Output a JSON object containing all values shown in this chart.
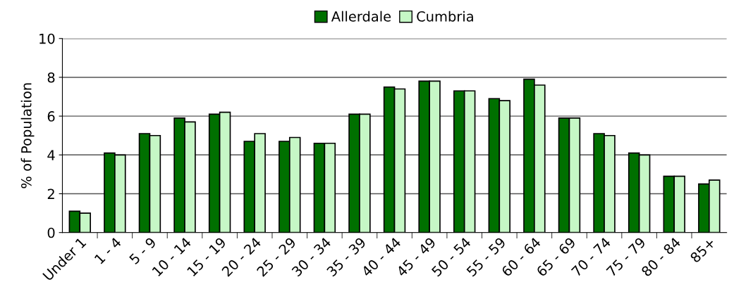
{
  "chart_data": {
    "type": "bar",
    "ylabel": "% of Population",
    "categories": [
      "Under 1",
      "1 - 4",
      "5 - 9",
      "10 - 14",
      "15 - 19",
      "20 - 24",
      "25 - 29",
      "30 - 34",
      "35 - 39",
      "40 - 44",
      "45 - 49",
      "50 - 54",
      "55 - 59",
      "60 - 64",
      "65 - 69",
      "70 - 74",
      "75 - 79",
      "80 - 84",
      "85+"
    ],
    "series": [
      {
        "name": "Allerdale",
        "color": "#007000",
        "values": [
          1.1,
          4.1,
          5.1,
          5.9,
          6.1,
          4.7,
          4.7,
          4.6,
          6.1,
          7.5,
          7.8,
          7.3,
          6.9,
          7.9,
          5.9,
          5.1,
          4.1,
          2.9,
          2.5
        ]
      },
      {
        "name": "Cumbria",
        "color": "#c6f7c6",
        "values": [
          1.0,
          4.0,
          5.0,
          5.7,
          6.2,
          5.1,
          4.9,
          4.6,
          6.1,
          7.4,
          7.8,
          7.3,
          6.8,
          7.6,
          5.9,
          5.0,
          4.0,
          2.9,
          2.7
        ]
      }
    ],
    "ylim": [
      0,
      10
    ],
    "yticks": [
      0,
      2,
      4,
      6,
      8,
      10
    ],
    "grid": "y",
    "legend": "top"
  }
}
